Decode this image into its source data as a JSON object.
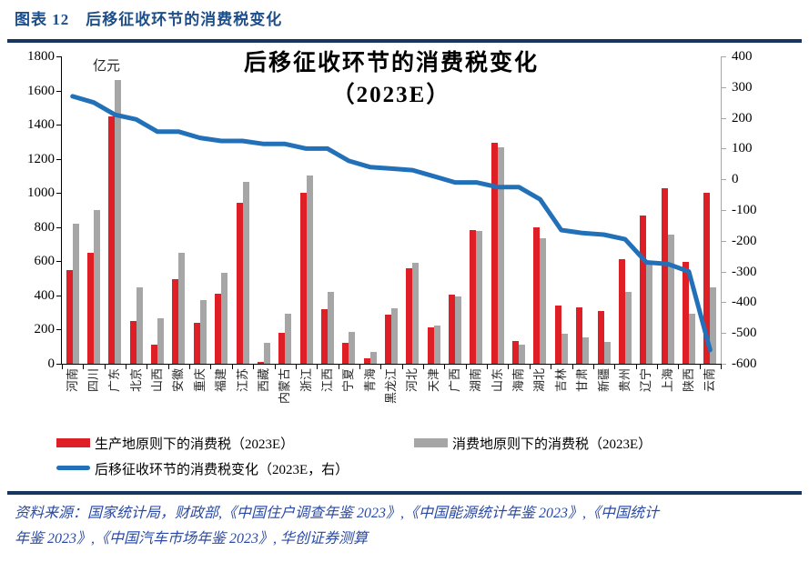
{
  "header": {
    "title": "图表 12　后移征收环节的消费税变化"
  },
  "chart_data": {
    "type": "bar+line",
    "title_line1": "后移征收环节的消费税变化",
    "title_line2": "（2023E）",
    "unit_label": "亿元",
    "legend_position": "bottom",
    "grid": false,
    "categories": [
      "河南",
      "四川",
      "广东",
      "北京",
      "山西",
      "安徽",
      "重庆",
      "福建",
      "江苏",
      "西藏",
      "内蒙古",
      "浙江",
      "江西",
      "宁夏",
      "青海",
      "黑龙江",
      "河北",
      "天津",
      "广西",
      "湖南",
      "山东",
      "海南",
      "湖北",
      "吉林",
      "甘肃",
      "新疆",
      "贵州",
      "辽宁",
      "上海",
      "陕西",
      "云南"
    ],
    "series": [
      {
        "name": "生产地原则下的消费税（2023E）",
        "type": "bar",
        "axis": "left",
        "color": "#df1f26",
        "values": [
          550,
          650,
          1450,
          250,
          110,
          495,
          240,
          410,
          940,
          10,
          180,
          1000,
          320,
          125,
          30,
          290,
          560,
          215,
          405,
          785,
          1295,
          135,
          800,
          340,
          330,
          310,
          615,
          870,
          1030,
          595,
          1000
        ]
      },
      {
        "name": "消费地原则下的消费税（2023E）",
        "type": "bar",
        "axis": "left",
        "color": "#a6a6a6",
        "values": [
          820,
          900,
          1660,
          445,
          265,
          650,
          375,
          535,
          1065,
          125,
          295,
          1100,
          420,
          185,
          70,
          325,
          590,
          225,
          395,
          775,
          1270,
          110,
          735,
          175,
          155,
          130,
          420,
          600,
          755,
          295,
          445
        ]
      },
      {
        "name": "后移征收环节的消费税变化（2023E，右）",
        "type": "line",
        "axis": "right",
        "color": "#2271b8",
        "values": [
          270,
          250,
          210,
          195,
          155,
          155,
          135,
          125,
          125,
          115,
          115,
          100,
          100,
          60,
          40,
          35,
          30,
          10,
          -10,
          -10,
          -25,
          -25,
          -65,
          -165,
          -175,
          -180,
          -195,
          -270,
          -275,
          -300,
          -555
        ]
      }
    ],
    "left_axis": {
      "min": 0,
      "max": 1800,
      "step": 200
    },
    "right_axis": {
      "min": -600,
      "max": 400,
      "step": 100
    }
  },
  "footer": {
    "line1": "资料来源：国家统计局，财政部,《中国住户调查年鉴 2023》,《中国能源统计年鉴 2023》,《中国统计",
    "line2": "年鉴 2023》,《中国汽车市场年鉴 2023》, 华创证券测算"
  }
}
